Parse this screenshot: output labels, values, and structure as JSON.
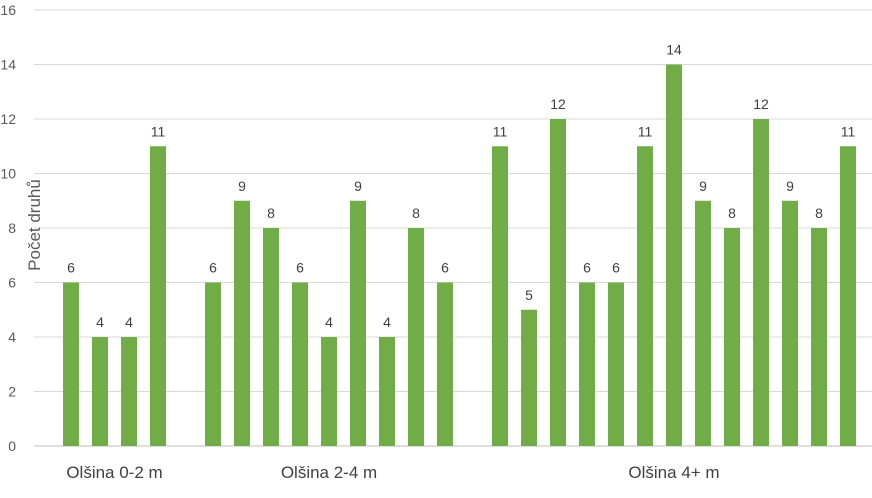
{
  "chart_data": {
    "type": "bar",
    "title": "",
    "xlabel": "",
    "ylabel": "Počet druhů",
    "ylim": [
      0,
      16
    ],
    "yticks": [
      0,
      2,
      4,
      6,
      8,
      10,
      12,
      14,
      16
    ],
    "grid": true,
    "legend": "none",
    "bar_color": "#70ad47",
    "groups": [
      {
        "label": "Olšina 0-2 m",
        "values": [
          6,
          4,
          4,
          11
        ]
      },
      {
        "label": "Olšina 2-4 m",
        "values": [
          6,
          9,
          8,
          6,
          4,
          9,
          4,
          8,
          6
        ]
      },
      {
        "label": "Olšina 4+ m",
        "values": [
          11,
          5,
          12,
          6,
          6,
          11,
          14,
          9,
          8,
          12,
          9,
          8,
          11
        ]
      }
    ]
  }
}
